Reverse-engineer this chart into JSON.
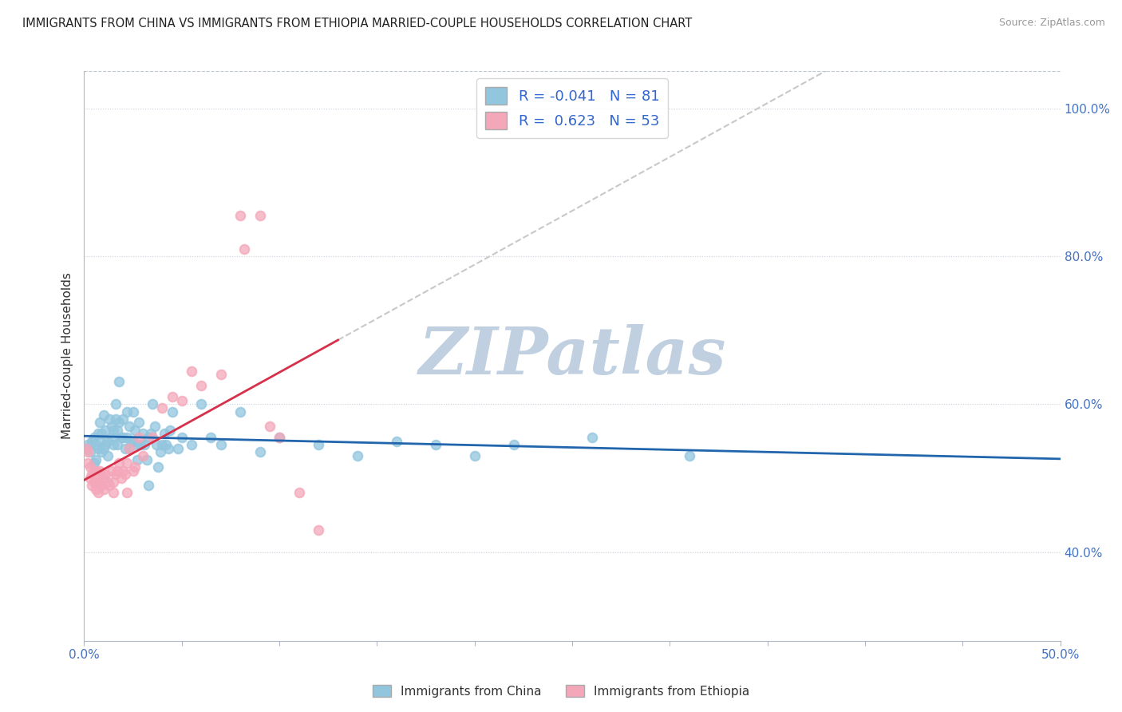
{
  "title": "IMMIGRANTS FROM CHINA VS IMMIGRANTS FROM ETHIOPIA MARRIED-COUPLE HOUSEHOLDS CORRELATION CHART",
  "source": "Source: ZipAtlas.com",
  "ylabel": "Married-couple Households",
  "yaxis_tick_vals": [
    0.4,
    0.6,
    0.8,
    1.0
  ],
  "legend_china_label": "R = -0.041  N = 81",
  "legend_ethiopia_label": "R =  0.623  N = 53",
  "china_color": "#92c5de",
  "ethiopia_color": "#f4a7b9",
  "china_line_color": "#2166ac",
  "ethiopia_line_color": "#d6304a",
  "trendline_dashed_color": "#c8c8c8",
  "background_color": "#ffffff",
  "legend_text_color": "#3366cc",
  "china_R": -0.041,
  "ethiopia_R": 0.623,
  "china_N": 81,
  "ethiopia_N": 53,
  "china_scatter": [
    [
      0.001,
      0.54
    ],
    [
      0.002,
      0.545
    ],
    [
      0.003,
      0.535
    ],
    [
      0.004,
      0.55
    ],
    [
      0.005,
      0.52
    ],
    [
      0.005,
      0.555
    ],
    [
      0.006,
      0.525
    ],
    [
      0.006,
      0.545
    ],
    [
      0.007,
      0.54
    ],
    [
      0.007,
      0.56
    ],
    [
      0.008,
      0.55
    ],
    [
      0.008,
      0.575
    ],
    [
      0.009,
      0.535
    ],
    [
      0.009,
      0.56
    ],
    [
      0.01,
      0.54
    ],
    [
      0.01,
      0.585
    ],
    [
      0.011,
      0.545
    ],
    [
      0.011,
      0.565
    ],
    [
      0.012,
      0.55
    ],
    [
      0.012,
      0.53
    ],
    [
      0.013,
      0.58
    ],
    [
      0.014,
      0.57
    ],
    [
      0.014,
      0.555
    ],
    [
      0.015,
      0.565
    ],
    [
      0.015,
      0.545
    ],
    [
      0.016,
      0.6
    ],
    [
      0.016,
      0.58
    ],
    [
      0.017,
      0.565
    ],
    [
      0.017,
      0.545
    ],
    [
      0.018,
      0.63
    ],
    [
      0.018,
      0.575
    ],
    [
      0.019,
      0.555
    ],
    [
      0.02,
      0.58
    ],
    [
      0.02,
      0.555
    ],
    [
      0.021,
      0.54
    ],
    [
      0.022,
      0.59
    ],
    [
      0.022,
      0.555
    ],
    [
      0.023,
      0.57
    ],
    [
      0.023,
      0.54
    ],
    [
      0.024,
      0.55
    ],
    [
      0.025,
      0.59
    ],
    [
      0.025,
      0.55
    ],
    [
      0.026,
      0.565
    ],
    [
      0.027,
      0.545
    ],
    [
      0.027,
      0.525
    ],
    [
      0.028,
      0.575
    ],
    [
      0.029,
      0.545
    ],
    [
      0.03,
      0.56
    ],
    [
      0.031,
      0.545
    ],
    [
      0.032,
      0.525
    ],
    [
      0.033,
      0.555
    ],
    [
      0.033,
      0.49
    ],
    [
      0.034,
      0.56
    ],
    [
      0.035,
      0.6
    ],
    [
      0.036,
      0.57
    ],
    [
      0.037,
      0.545
    ],
    [
      0.038,
      0.515
    ],
    [
      0.039,
      0.535
    ],
    [
      0.04,
      0.545
    ],
    [
      0.041,
      0.56
    ],
    [
      0.042,
      0.545
    ],
    [
      0.043,
      0.54
    ],
    [
      0.044,
      0.565
    ],
    [
      0.045,
      0.59
    ],
    [
      0.048,
      0.54
    ],
    [
      0.05,
      0.555
    ],
    [
      0.055,
      0.545
    ],
    [
      0.06,
      0.6
    ],
    [
      0.065,
      0.555
    ],
    [
      0.07,
      0.545
    ],
    [
      0.08,
      0.59
    ],
    [
      0.09,
      0.535
    ],
    [
      0.1,
      0.555
    ],
    [
      0.12,
      0.545
    ],
    [
      0.14,
      0.53
    ],
    [
      0.16,
      0.55
    ],
    [
      0.18,
      0.545
    ],
    [
      0.2,
      0.53
    ],
    [
      0.22,
      0.545
    ],
    [
      0.26,
      0.555
    ],
    [
      0.31,
      0.53
    ]
  ],
  "ethiopia_scatter": [
    [
      0.001,
      0.54
    ],
    [
      0.002,
      0.535
    ],
    [
      0.002,
      0.52
    ],
    [
      0.003,
      0.515
    ],
    [
      0.003,
      0.5
    ],
    [
      0.004,
      0.505
    ],
    [
      0.004,
      0.49
    ],
    [
      0.005,
      0.51
    ],
    [
      0.005,
      0.495
    ],
    [
      0.006,
      0.51
    ],
    [
      0.006,
      0.495
    ],
    [
      0.006,
      0.485
    ],
    [
      0.007,
      0.495
    ],
    [
      0.007,
      0.48
    ],
    [
      0.008,
      0.51
    ],
    [
      0.008,
      0.49
    ],
    [
      0.009,
      0.505
    ],
    [
      0.009,
      0.49
    ],
    [
      0.01,
      0.5
    ],
    [
      0.01,
      0.485
    ],
    [
      0.011,
      0.505
    ],
    [
      0.012,
      0.495
    ],
    [
      0.013,
      0.49
    ],
    [
      0.014,
      0.51
    ],
    [
      0.015,
      0.495
    ],
    [
      0.015,
      0.48
    ],
    [
      0.016,
      0.505
    ],
    [
      0.017,
      0.51
    ],
    [
      0.018,
      0.52
    ],
    [
      0.019,
      0.5
    ],
    [
      0.02,
      0.51
    ],
    [
      0.021,
      0.505
    ],
    [
      0.022,
      0.52
    ],
    [
      0.022,
      0.48
    ],
    [
      0.023,
      0.54
    ],
    [
      0.025,
      0.51
    ],
    [
      0.026,
      0.515
    ],
    [
      0.028,
      0.555
    ],
    [
      0.03,
      0.53
    ],
    [
      0.035,
      0.555
    ],
    [
      0.04,
      0.595
    ],
    [
      0.045,
      0.61
    ],
    [
      0.05,
      0.605
    ],
    [
      0.055,
      0.645
    ],
    [
      0.06,
      0.625
    ],
    [
      0.07,
      0.64
    ],
    [
      0.08,
      0.855
    ],
    [
      0.082,
      0.81
    ],
    [
      0.09,
      0.855
    ],
    [
      0.095,
      0.57
    ],
    [
      0.1,
      0.555
    ],
    [
      0.11,
      0.48
    ],
    [
      0.12,
      0.43
    ]
  ],
  "xlim": [
    0.0,
    0.5
  ],
  "ylim": [
    0.28,
    1.05
  ],
  "ethiopia_trendline_data_xlim": [
    0.0,
    0.13
  ],
  "dashed_extend_xlim": [
    0.13,
    0.5
  ],
  "watermark": "ZIPatlas",
  "watermark_color": "#c0d0e0"
}
